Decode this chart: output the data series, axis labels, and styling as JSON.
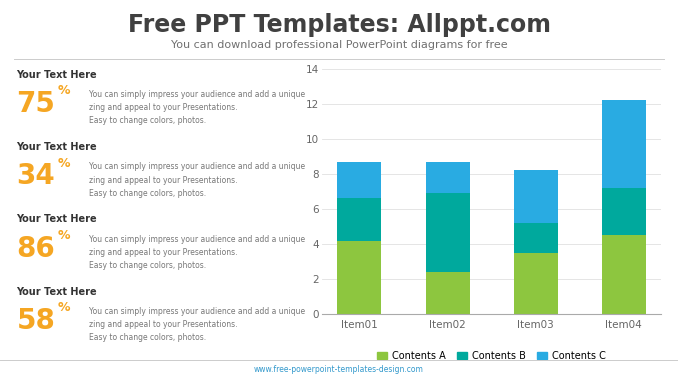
{
  "title": "Free PPT Templates: Allppt.com",
  "subtitle": "You can download professional PowerPoint diagrams for free",
  "footer": "www.free-powerpoint-templates-design.com",
  "bg_color": "#ffffff",
  "title_color": "#404040",
  "subtitle_color": "#707070",
  "left_panel": {
    "items": [
      {
        "heading": "Your Text Here",
        "percent": "75",
        "desc": "You can simply impress your audience and add a unique\nzing and appeal to your Presentations.\nEasy to change colors, photos."
      },
      {
        "heading": "Your Text Here",
        "percent": "34",
        "desc": "You can simply impress your audience and add a unique\nzing and appeal to your Presentations.\nEasy to change colors, photos."
      },
      {
        "heading": "Your Text Here",
        "percent": "86",
        "desc": "You can simply impress your audience and add a unique\nzing and appeal to your Presentations.\nEasy to change colors, photos."
      },
      {
        "heading": "Your Text Here",
        "percent": "58",
        "desc": "You can simply impress your audience and add a unique\nzing and appeal to your Presentations.\nEasy to change colors, photos."
      }
    ],
    "heading_color": "#333333",
    "percent_color": "#F5A623",
    "desc_color": "#777777"
  },
  "chart": {
    "categories": [
      "Item01",
      "Item02",
      "Item03",
      "Item04"
    ],
    "series": [
      {
        "label": "Contents A",
        "color": "#8DC63F",
        "values": [
          4.2,
          2.4,
          3.5,
          4.5
        ]
      },
      {
        "label": "Contents B",
        "color": "#00A99D",
        "values": [
          2.4,
          4.5,
          1.7,
          2.7
        ]
      },
      {
        "label": "Contents C",
        "color": "#29ABE2",
        "values": [
          2.1,
          1.8,
          3.0,
          5.0
        ]
      }
    ],
    "ylim": [
      0,
      14
    ],
    "yticks": [
      0,
      2,
      4,
      6,
      8,
      10,
      12,
      14
    ],
    "bar_width": 0.5,
    "grid_color": "#e0e0e0",
    "axis_color": "#aaaaaa",
    "tick_color": "#666666"
  }
}
